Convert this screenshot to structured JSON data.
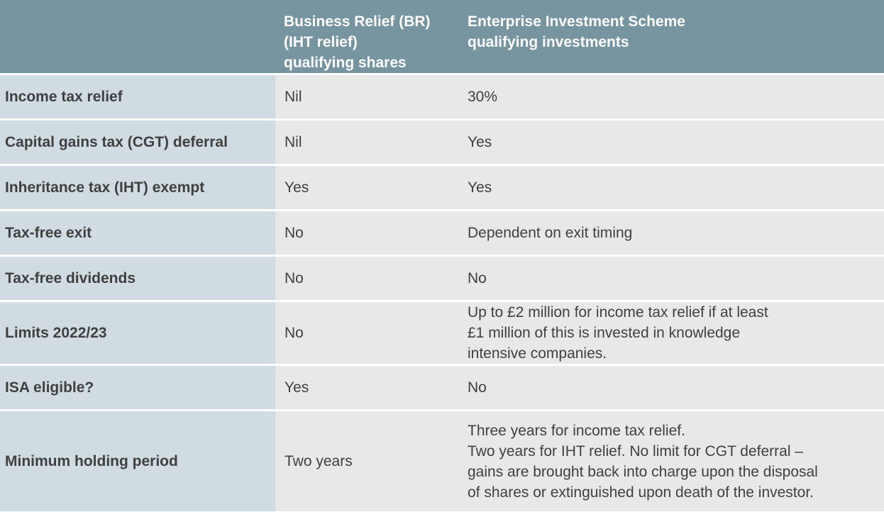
{
  "header": {
    "corner": "",
    "col_br": "Business Relief (BR)\n(IHT relief)\nqualifying shares",
    "col_eis": "Enterprise Investment Scheme\nqualifying investments"
  },
  "rows": [
    {
      "label": "Income tax relief",
      "br": "Nil",
      "eis": "30%"
    },
    {
      "label": "Capital gains tax (CGT) deferral",
      "br": "Nil",
      "eis": "Yes"
    },
    {
      "label": "Inheritance tax (IHT) exempt",
      "br": "Yes",
      "eis": "Yes"
    },
    {
      "label": "Tax-free exit",
      "br": "No",
      "eis": "Dependent on exit timing"
    },
    {
      "label": "Tax-free dividends",
      "br": "No",
      "eis": "No"
    },
    {
      "label": "Limits 2022/23",
      "br": "No",
      "eis": "Up to £2 million for income tax relief if at least\n£1 million of this is invested in knowledge\nintensive companies."
    },
    {
      "label": "ISA eligible?",
      "br": "Yes",
      "eis": "No"
    },
    {
      "label": "Minimum holding period",
      "br": "Two years",
      "eis": "Three years for income tax relief.\nTwo years for IHT relief. No limit for CGT deferral –\ngains are brought back into charge upon the disposal\nof shares or extinguished upon death of the investor."
    }
  ],
  "colors": {
    "header_bg": "#7795a1",
    "label_bg": "#d0dce1",
    "value_bg": "#e8e8e8",
    "text": "#404040"
  }
}
